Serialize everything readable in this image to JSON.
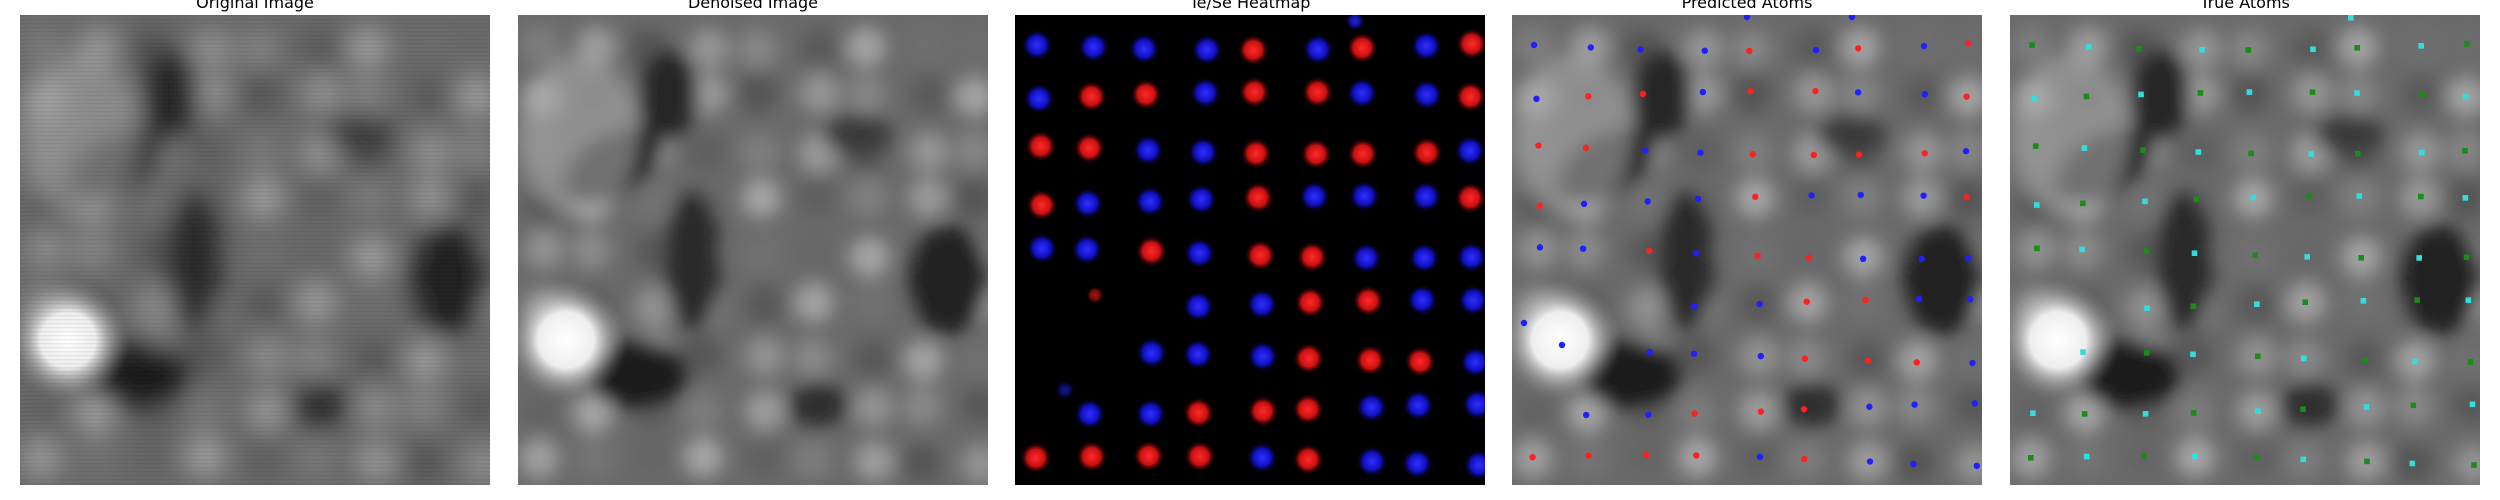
{
  "figure": {
    "panels": [
      {
        "id": "original",
        "title": "Original Image",
        "kind": "grayscale"
      },
      {
        "id": "denoised",
        "title": "Denoised Image",
        "kind": "grayscale"
      },
      {
        "id": "heatmap",
        "title": "Te/Se Heatmap",
        "kind": "heatmap"
      },
      {
        "id": "predicted",
        "title": "Predicted Atoms",
        "kind": "markers"
      },
      {
        "id": "true",
        "title": "True Atoms",
        "kind": "markers"
      }
    ]
  },
  "colors": {
    "te": "#1f1fff",
    "se": "#ff2020",
    "true_te": "#33dddd",
    "true_se": "#1a8c1a",
    "heatmap_bg": "#000000"
  }
}
